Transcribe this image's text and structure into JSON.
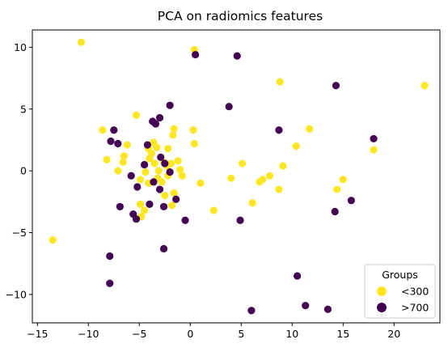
{
  "chart_data": {
    "type": "scatter",
    "title": "PCA on radiomics features",
    "xlabel": "",
    "ylabel": "",
    "xlim": [
      -15.5,
      24.5
    ],
    "ylim": [
      -12.3,
      11.4
    ],
    "xticks": [
      -15,
      -10,
      -5,
      0,
      5,
      10,
      15,
      20
    ],
    "yticks": [
      -10,
      -5,
      0,
      5,
      10
    ],
    "grid": false,
    "legend": {
      "title": "Groups",
      "placement": "lower-right",
      "entries": [
        {
          "label": "<300",
          "color": "#fde725"
        },
        {
          "label": ">700",
          "color": "#440154"
        }
      ]
    },
    "series": [
      {
        "name": "<300",
        "color": "#fde725",
        "points": [
          [
            -10.7,
            10.4
          ],
          [
            0.4,
            9.8
          ],
          [
            8.8,
            7.2
          ],
          [
            23.0,
            6.9
          ],
          [
            -5.3,
            4.5
          ],
          [
            11.7,
            3.4
          ],
          [
            -8.6,
            3.3
          ],
          [
            -1.6,
            3.4
          ],
          [
            0.3,
            3.3
          ],
          [
            -1.7,
            2.9
          ],
          [
            -6.2,
            2.1
          ],
          [
            -6.5,
            1.2
          ],
          [
            -8.2,
            0.9
          ],
          [
            -6.6,
            0.7
          ],
          [
            -7.1,
            0.0
          ],
          [
            -4.1,
            1.8
          ],
          [
            -3.8,
            1.4
          ],
          [
            -3.6,
            2.3
          ],
          [
            -2.2,
            1.8
          ],
          [
            -3.3,
            1.9
          ],
          [
            -4.0,
            1.0
          ],
          [
            -3.5,
            0.6
          ],
          [
            -2.3,
            0.4
          ],
          [
            -1.9,
            0.6
          ],
          [
            -1.2,
            0.8
          ],
          [
            -1.0,
            0.1
          ],
          [
            -0.8,
            -0.4
          ],
          [
            -2.6,
            0.7
          ],
          [
            -3.1,
            0.0
          ],
          [
            -4.4,
            -0.1
          ],
          [
            -4.9,
            -0.7
          ],
          [
            -3.2,
            -0.6
          ],
          [
            -2.2,
            -0.4
          ],
          [
            -2.8,
            -0.9
          ],
          [
            -4.1,
            -1.0
          ],
          [
            -2.5,
            -2.0
          ],
          [
            -1.6,
            -1.8
          ],
          [
            -4.9,
            -2.7
          ],
          [
            -4.5,
            -3.2
          ],
          [
            -4.8,
            -3.7
          ],
          [
            -1.8,
            -2.8
          ],
          [
            0.4,
            2.2
          ],
          [
            1.0,
            -1.0
          ],
          [
            2.3,
            -3.2
          ],
          [
            4.0,
            -0.6
          ],
          [
            5.1,
            0.6
          ],
          [
            6.1,
            -2.6
          ],
          [
            6.8,
            -0.9
          ],
          [
            7.1,
            -0.7
          ],
          [
            7.8,
            -0.4
          ],
          [
            9.1,
            0.4
          ],
          [
            8.7,
            -1.5
          ],
          [
            10.4,
            2.0
          ],
          [
            14.4,
            -1.5
          ],
          [
            15.0,
            -0.7
          ],
          [
            18.0,
            1.7
          ],
          [
            -13.5,
            -5.6
          ]
        ]
      },
      {
        "name": ">700",
        "color": "#440154",
        "points": [
          [
            4.6,
            9.3
          ],
          [
            0.5,
            9.4
          ],
          [
            14.3,
            6.9
          ],
          [
            -2.0,
            5.3
          ],
          [
            3.8,
            5.2
          ],
          [
            -3.7,
            4.0
          ],
          [
            -3.0,
            4.3
          ],
          [
            -3.4,
            3.8
          ],
          [
            -7.5,
            3.3
          ],
          [
            8.7,
            3.3
          ],
          [
            18.0,
            2.6
          ],
          [
            -7.8,
            2.4
          ],
          [
            -7.1,
            2.2
          ],
          [
            -4.2,
            2.1
          ],
          [
            -2.9,
            1.1
          ],
          [
            -2.5,
            0.6
          ],
          [
            -4.5,
            0.5
          ],
          [
            -5.8,
            -0.4
          ],
          [
            -5.2,
            -1.3
          ],
          [
            -3.6,
            -0.9
          ],
          [
            -2.0,
            -0.1
          ],
          [
            -1.4,
            -2.3
          ],
          [
            -3.0,
            -1.5
          ],
          [
            -4.0,
            -2.7
          ],
          [
            -6.9,
            -2.9
          ],
          [
            -5.6,
            -3.5
          ],
          [
            -5.3,
            -3.9
          ],
          [
            -2.6,
            -2.9
          ],
          [
            -0.5,
            -4.0
          ],
          [
            4.9,
            -4.0
          ],
          [
            -2.6,
            -6.3
          ],
          [
            -7.9,
            -6.9
          ],
          [
            -7.9,
            -9.1
          ],
          [
            15.8,
            -2.4
          ],
          [
            14.2,
            -3.3
          ],
          [
            10.5,
            -8.5
          ],
          [
            11.3,
            -10.9
          ],
          [
            13.5,
            -11.2
          ],
          [
            6.0,
            -11.3
          ]
        ]
      }
    ]
  }
}
